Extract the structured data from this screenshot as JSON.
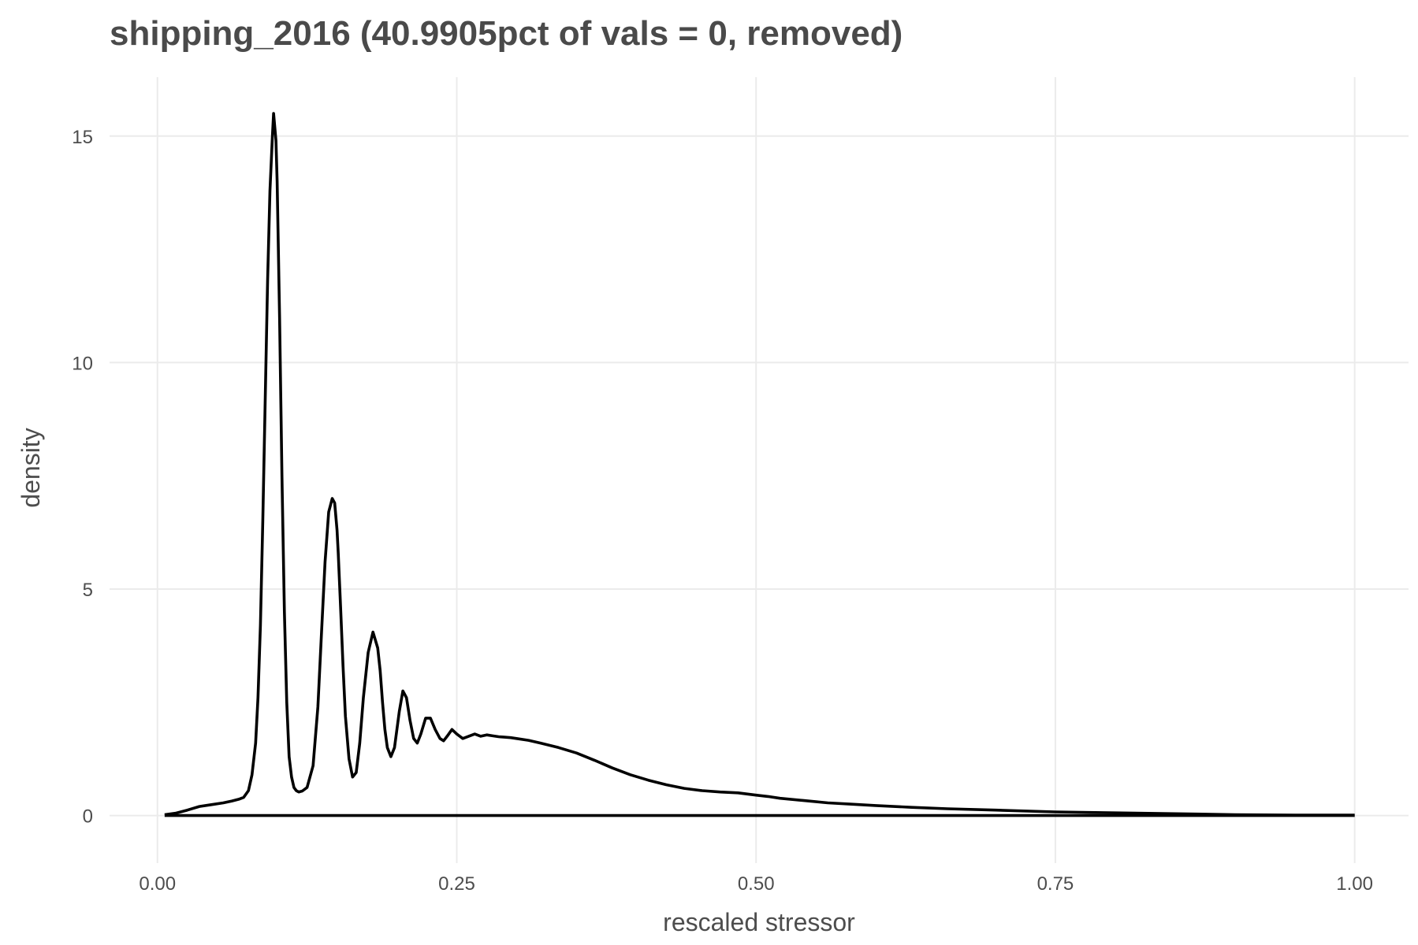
{
  "chart_data": {
    "type": "line",
    "title": "shipping_2016 (40.9905pct of vals = 0, removed)",
    "xlabel": "rescaled stressor",
    "ylabel": "density",
    "xlim": [
      -0.04,
      1.045
    ],
    "ylim": [
      -1.05,
      16.3
    ],
    "grid": true,
    "legend": "none",
    "x_ticks": [
      {
        "value": 0.0,
        "label": "0.00"
      },
      {
        "value": 0.25,
        "label": "0.25"
      },
      {
        "value": 0.5,
        "label": "0.50"
      },
      {
        "value": 0.75,
        "label": "0.75"
      },
      {
        "value": 1.0,
        "label": "1.00"
      }
    ],
    "y_ticks": [
      {
        "value": 0,
        "label": "0"
      },
      {
        "value": 5,
        "label": "5"
      },
      {
        "value": 10,
        "label": "10"
      },
      {
        "value": 15,
        "label": "15"
      }
    ],
    "series": [
      {
        "color": "#000000",
        "x": [
          0.006,
          0.015,
          0.025,
          0.035,
          0.045,
          0.055,
          0.062,
          0.068,
          0.072,
          0.076,
          0.079,
          0.082,
          0.084,
          0.086,
          0.088,
          0.09,
          0.092,
          0.094,
          0.096,
          0.097,
          0.098,
          0.099,
          0.1,
          0.102,
          0.104,
          0.106,
          0.108,
          0.11,
          0.112,
          0.114,
          0.116,
          0.118,
          0.121,
          0.125,
          0.13,
          0.134,
          0.137,
          0.14,
          0.143,
          0.146,
          0.148,
          0.15,
          0.151,
          0.153,
          0.155,
          0.157,
          0.16,
          0.163,
          0.166,
          0.169,
          0.172,
          0.176,
          0.18,
          0.184,
          0.186,
          0.188,
          0.19,
          0.192,
          0.195,
          0.198,
          0.202,
          0.205,
          0.208,
          0.211,
          0.214,
          0.217,
          0.22,
          0.224,
          0.228,
          0.232,
          0.236,
          0.239,
          0.242,
          0.246,
          0.25,
          0.255,
          0.26,
          0.265,
          0.27,
          0.275,
          0.28,
          0.285,
          0.29,
          0.295,
          0.3,
          0.31,
          0.32,
          0.335,
          0.35,
          0.365,
          0.38,
          0.395,
          0.41,
          0.425,
          0.44,
          0.455,
          0.47,
          0.485,
          0.5,
          0.51,
          0.52,
          0.54,
          0.56,
          0.58,
          0.6,
          0.63,
          0.66,
          0.7,
          0.75,
          0.8,
          0.85,
          0.9,
          0.95,
          1.0
        ],
        "y": [
          0.02,
          0.05,
          0.12,
          0.2,
          0.24,
          0.28,
          0.32,
          0.36,
          0.4,
          0.55,
          0.9,
          1.6,
          2.6,
          4.2,
          6.5,
          9.2,
          11.8,
          13.8,
          15.0,
          15.5,
          15.2,
          14.9,
          14.0,
          11.0,
          7.5,
          4.5,
          2.5,
          1.3,
          0.85,
          0.62,
          0.55,
          0.52,
          0.54,
          0.62,
          1.1,
          2.4,
          4.0,
          5.6,
          6.7,
          7.0,
          6.9,
          6.3,
          5.8,
          4.6,
          3.3,
          2.2,
          1.25,
          0.85,
          0.95,
          1.6,
          2.6,
          3.6,
          4.05,
          3.7,
          3.2,
          2.5,
          1.9,
          1.5,
          1.3,
          1.5,
          2.3,
          2.75,
          2.6,
          2.1,
          1.7,
          1.6,
          1.8,
          2.15,
          2.15,
          1.9,
          1.7,
          1.65,
          1.75,
          1.9,
          1.8,
          1.7,
          1.75,
          1.8,
          1.75,
          1.78,
          1.76,
          1.74,
          1.73,
          1.72,
          1.7,
          1.66,
          1.6,
          1.5,
          1.38,
          1.22,
          1.05,
          0.9,
          0.78,
          0.68,
          0.6,
          0.55,
          0.52,
          0.5,
          0.45,
          0.42,
          0.38,
          0.33,
          0.28,
          0.25,
          0.22,
          0.18,
          0.15,
          0.12,
          0.08,
          0.06,
          0.04,
          0.02,
          0.01,
          0.01
        ]
      }
    ],
    "baseline": {
      "x": [
        0.006,
        1.0
      ],
      "y": [
        0,
        0
      ]
    }
  }
}
